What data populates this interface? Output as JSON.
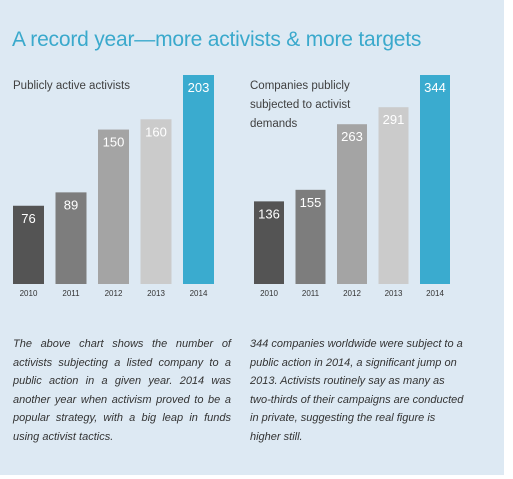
{
  "title": "A record year—more activists & more targets",
  "colors": {
    "background": "#dde9f3",
    "title": "#3aa9cc",
    "bar_2010": "#545454",
    "bar_2011": "#7d7d7d",
    "bar_2012": "#a4a4a4",
    "bar_2013": "#cbcbcb",
    "bar_2014": "#3aabcf"
  },
  "chart_data": [
    {
      "type": "bar",
      "title": "Publicly active activists",
      "categories": [
        "2010",
        "2011",
        "2012",
        "2013",
        "2014"
      ],
      "values": [
        76,
        89,
        150,
        160,
        203
      ],
      "ylim": [
        0,
        203
      ],
      "grid": false,
      "legend": "none"
    },
    {
      "type": "bar",
      "title": "Companies publicly subjected to activist demands",
      "categories": [
        "2010",
        "2011",
        "2012",
        "2013",
        "2014"
      ],
      "values": [
        136,
        155,
        263,
        291,
        344
      ],
      "ylim": [
        0,
        344
      ],
      "grid": false,
      "legend": "none"
    }
  ],
  "captions": {
    "left": "The above chart shows the number of activists subjecting a listed company to a public action in a given year. 2014 was another year when activism proved to be a popular strategy, with a big leap in funds using activist tactics.",
    "right": "344 companies worldwide were subject to a public action in 2014, a significant jump on 2013. Activists routinely say as many as two-thirds of their campaigns are conducted in private, suggesting the real figure is higher still."
  }
}
